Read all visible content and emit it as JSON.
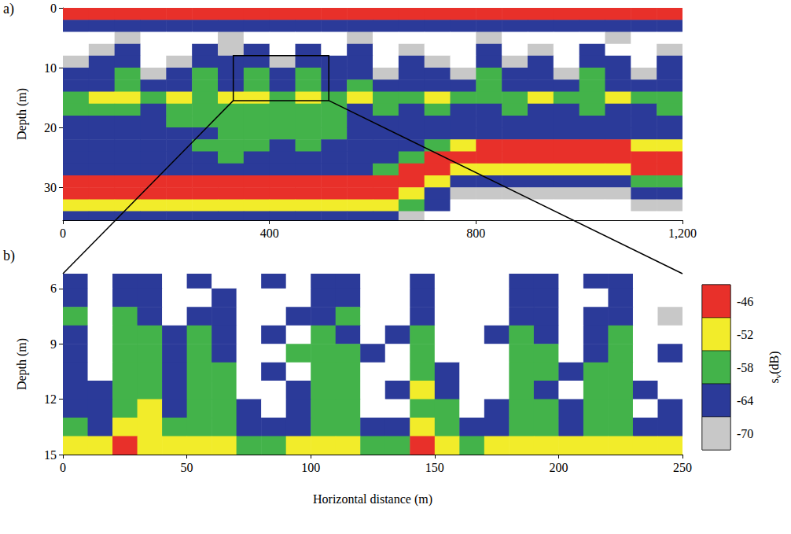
{
  "chart_data": [
    {
      "type": "heatmap",
      "panel_label": "a)",
      "ylabel": "Depth (m)",
      "xlim": [
        0,
        1200
      ],
      "xticks": [
        0,
        400,
        800,
        1200
      ],
      "ylim": [
        0,
        35.5
      ],
      "yticks": [
        0,
        10,
        20,
        30
      ],
      "zoom_box": {
        "x": [
          330,
          515
        ],
        "y": [
          8,
          15.5
        ]
      },
      "x": [
        25,
        75,
        125,
        175,
        225,
        275,
        325,
        375,
        425,
        475,
        525,
        575,
        625,
        675,
        725,
        775,
        825,
        875,
        925,
        975,
        1025,
        1075,
        1125,
        1175
      ],
      "y": [
        1,
        3,
        5,
        7,
        9,
        11,
        13,
        15,
        17,
        19,
        21,
        23,
        25,
        27,
        29,
        31,
        33,
        35
      ],
      "values": [
        [
          -48,
          -48,
          -48,
          -48,
          -48,
          -48,
          -48,
          -48,
          -48,
          -48,
          -48,
          -48,
          -48,
          -48,
          -48,
          -48,
          -48,
          -48,
          -48,
          -48,
          -48,
          -48,
          -48,
          -48
        ],
        [
          -64,
          -64,
          -64,
          -64,
          -64,
          -64,
          -64,
          -64,
          -64,
          -64,
          -64,
          -64,
          -64,
          -64,
          -64,
          -64,
          -64,
          -64,
          -64,
          -64,
          -64,
          -64,
          -64,
          -64
        ],
        [
          -74,
          -74,
          -68,
          -74,
          -74,
          -74,
          -68,
          -74,
          -74,
          -74,
          -74,
          -68,
          -74,
          -74,
          -74,
          -74,
          -68,
          -74,
          -74,
          -74,
          -74,
          -68,
          -74,
          -74
        ],
        [
          -74,
          -68,
          -66,
          -74,
          -74,
          -66,
          -68,
          -66,
          -74,
          -66,
          -74,
          -66,
          -74,
          -68,
          -74,
          -74,
          -66,
          -74,
          -68,
          -74,
          -66,
          -74,
          -74,
          -68
        ],
        [
          -68,
          -66,
          -62,
          -74,
          -68,
          -62,
          -66,
          -62,
          -68,
          -62,
          -66,
          -64,
          -74,
          -66,
          -68,
          -74,
          -62,
          -68,
          -66,
          -74,
          -62,
          -66,
          -74,
          -66
        ],
        [
          -66,
          -64,
          -60,
          -68,
          -66,
          -60,
          -64,
          -60,
          -66,
          -60,
          -64,
          -62,
          -68,
          -64,
          -66,
          -68,
          -60,
          -66,
          -64,
          -68,
          -60,
          -64,
          -68,
          -64
        ],
        [
          -64,
          -62,
          -58,
          -66,
          -64,
          -58,
          -62,
          -58,
          -64,
          -58,
          -62,
          -60,
          -66,
          -62,
          -64,
          -66,
          -58,
          -64,
          -62,
          -66,
          -58,
          -62,
          -66,
          -62
        ],
        [
          -56,
          -54,
          -54,
          -56,
          -54,
          -56,
          -54,
          -54,
          -56,
          -54,
          -56,
          -54,
          -56,
          -56,
          -54,
          -56,
          -56,
          -56,
          -54,
          -56,
          -56,
          -54,
          -56,
          -56
        ],
        [
          -60,
          -60,
          -58,
          -62,
          -60,
          -58,
          -58,
          -58,
          -58,
          -58,
          -60,
          -62,
          -60,
          -62,
          -60,
          -62,
          -62,
          -60,
          -62,
          -62,
          -60,
          -62,
          -62,
          -60
        ],
        [
          -62,
          -64,
          -62,
          -62,
          -60,
          -60,
          -58,
          -58,
          -58,
          -58,
          -60,
          -62,
          -64,
          -62,
          -64,
          -62,
          -64,
          -62,
          -64,
          -62,
          -64,
          -64,
          -62,
          -64
        ],
        [
          -64,
          -64,
          -62,
          -64,
          -62,
          -62,
          -58,
          -58,
          -58,
          -60,
          -60,
          -62,
          -62,
          -64,
          -62,
          -64,
          -62,
          -64,
          -62,
          -64,
          -62,
          -62,
          -64,
          -62
        ],
        [
          -64,
          -62,
          -64,
          -62,
          -62,
          -60,
          -60,
          -60,
          -62,
          -60,
          -62,
          -62,
          -62,
          -62,
          -60,
          -54,
          -48,
          -48,
          -48,
          -48,
          -48,
          -48,
          -52,
          -52
        ],
        [
          -64,
          -64,
          -62,
          -64,
          -62,
          -62,
          -60,
          -62,
          -62,
          -62,
          -64,
          -62,
          -62,
          -60,
          -48,
          -45,
          -45,
          -45,
          -45,
          -45,
          -45,
          -45,
          -45,
          -45
        ],
        [
          -64,
          -64,
          -64,
          -62,
          -64,
          -62,
          -62,
          -62,
          -64,
          -62,
          -64,
          -62,
          -60,
          -47,
          -45,
          -52,
          -52,
          -52,
          -52,
          -52,
          -52,
          -52,
          -47,
          -47
        ],
        [
          -44,
          -44,
          -44,
          -44,
          -44,
          -44,
          -44,
          -44,
          -44,
          -44,
          -44,
          -44,
          -45,
          -46,
          -54,
          -62,
          -62,
          -62,
          -62,
          -62,
          -62,
          -62,
          -56,
          -56
        ],
        [
          -46,
          -46,
          -46,
          -46,
          -46,
          -46,
          -46,
          -46,
          -46,
          -46,
          -46,
          -46,
          -47,
          -52,
          -62,
          -68,
          -68,
          -68,
          -68,
          -68,
          -68,
          -68,
          -66,
          -66
        ],
        [
          -53,
          -53,
          -53,
          -53,
          -53,
          -53,
          -53,
          -53,
          -53,
          -53,
          -53,
          -53,
          -54,
          -60,
          -66,
          -74,
          -74,
          -74,
          -74,
          -74,
          -74,
          -74,
          -70,
          -70
        ],
        [
          -66,
          -66,
          -66,
          -66,
          -66,
          -66,
          -66,
          -66,
          -66,
          -66,
          -66,
          -66,
          -66,
          -68,
          -74,
          -76,
          -76,
          -76,
          -76,
          -76,
          -76,
          -76,
          -76,
          -76
        ]
      ]
    },
    {
      "type": "heatmap",
      "panel_label": "b)",
      "xlabel": "Horizontal distance (m)",
      "ylabel": "Depth (m)",
      "xlim": [
        0,
        250
      ],
      "xticks": [
        0,
        50,
        100,
        150,
        200,
        250
      ],
      "ylim": [
        5.2,
        15
      ],
      "yticks": [
        6,
        9,
        12,
        15
      ],
      "x": [
        5,
        15,
        25,
        35,
        45,
        55,
        65,
        75,
        85,
        95,
        105,
        115,
        125,
        135,
        145,
        155,
        165,
        175,
        185,
        195,
        205,
        215,
        225,
        235,
        245
      ],
      "y": [
        5.5,
        6.5,
        7.5,
        8.5,
        9.5,
        10.5,
        11.5,
        12.5,
        13.5,
        14.5
      ],
      "values": [
        [
          -66,
          -74,
          -64,
          -66,
          -74,
          -66,
          -74,
          -74,
          -66,
          -74,
          -66,
          -64,
          -74,
          -74,
          -66,
          -74,
          -74,
          -74,
          -66,
          -64,
          -74,
          -66,
          -64,
          -74,
          -74
        ],
        [
          -64,
          -74,
          -62,
          -64,
          -74,
          -74,
          -66,
          -74,
          -74,
          -74,
          -64,
          -66,
          -74,
          -74,
          -64,
          -74,
          -74,
          -74,
          -64,
          -62,
          -74,
          -74,
          -64,
          -74,
          -74
        ],
        [
          -60,
          -74,
          -58,
          -62,
          -74,
          -66,
          -64,
          -74,
          -74,
          -66,
          -62,
          -60,
          -74,
          -74,
          -62,
          -74,
          -74,
          -74,
          -62,
          -64,
          -74,
          -66,
          -62,
          -74,
          -70
        ],
        [
          -62,
          -74,
          -60,
          -58,
          -66,
          -60,
          -62,
          -74,
          -66,
          -74,
          -58,
          -62,
          -74,
          -66,
          -60,
          -74,
          -74,
          -66,
          -60,
          -62,
          -74,
          -62,
          -60,
          -74,
          -74
        ],
        [
          -64,
          -74,
          -58,
          -56,
          -66,
          -58,
          -62,
          -74,
          -74,
          -60,
          -56,
          -58,
          -66,
          -74,
          -58,
          -74,
          -74,
          -74,
          -56,
          -60,
          -74,
          -62,
          -58,
          -74,
          -66
        ],
        [
          -66,
          -74,
          -56,
          -58,
          -64,
          -60,
          -58,
          -74,
          -66,
          -74,
          -58,
          -56,
          -74,
          -74,
          -56,
          -66,
          -74,
          -74,
          -58,
          -60,
          -66,
          -58,
          -60,
          -74,
          -74
        ],
        [
          -66,
          -66,
          -58,
          -56,
          -66,
          -58,
          -60,
          -74,
          -74,
          -66,
          -56,
          -58,
          -74,
          -66,
          -54,
          -62,
          -74,
          -74,
          -56,
          -62,
          -74,
          -60,
          -58,
          -66,
          -74
        ],
        [
          -62,
          -66,
          -56,
          -54,
          -64,
          -56,
          -58,
          -66,
          -74,
          -66,
          -58,
          -60,
          -74,
          -74,
          -56,
          -60,
          -74,
          -66,
          -58,
          -60,
          -66,
          -58,
          -60,
          -74,
          -66
        ],
        [
          -60,
          -62,
          -54,
          -52,
          -60,
          -56,
          -56,
          -62,
          -66,
          -62,
          -58,
          -56,
          -64,
          -66,
          -54,
          -58,
          -66,
          -64,
          -56,
          -58,
          -62,
          -58,
          -56,
          -64,
          -62
        ],
        [
          -52,
          -54,
          -48,
          -50,
          -54,
          -52,
          -50,
          -56,
          -56,
          -54,
          -54,
          -52,
          -56,
          -56,
          -48,
          -52,
          -56,
          -54,
          -52,
          -50,
          -54,
          -52,
          -52,
          -54,
          -52
        ]
      ],
      "colorbar": {
        "label": "sv(dB)",
        "range": [
          -73,
          -43
        ],
        "ticks": [
          -46,
          -52,
          -58,
          -64,
          -70
        ],
        "colors": [
          "#e8302a",
          "#f2ec2a",
          "#43b34a",
          "#2b3a99",
          "#c8c8c8"
        ]
      }
    }
  ]
}
